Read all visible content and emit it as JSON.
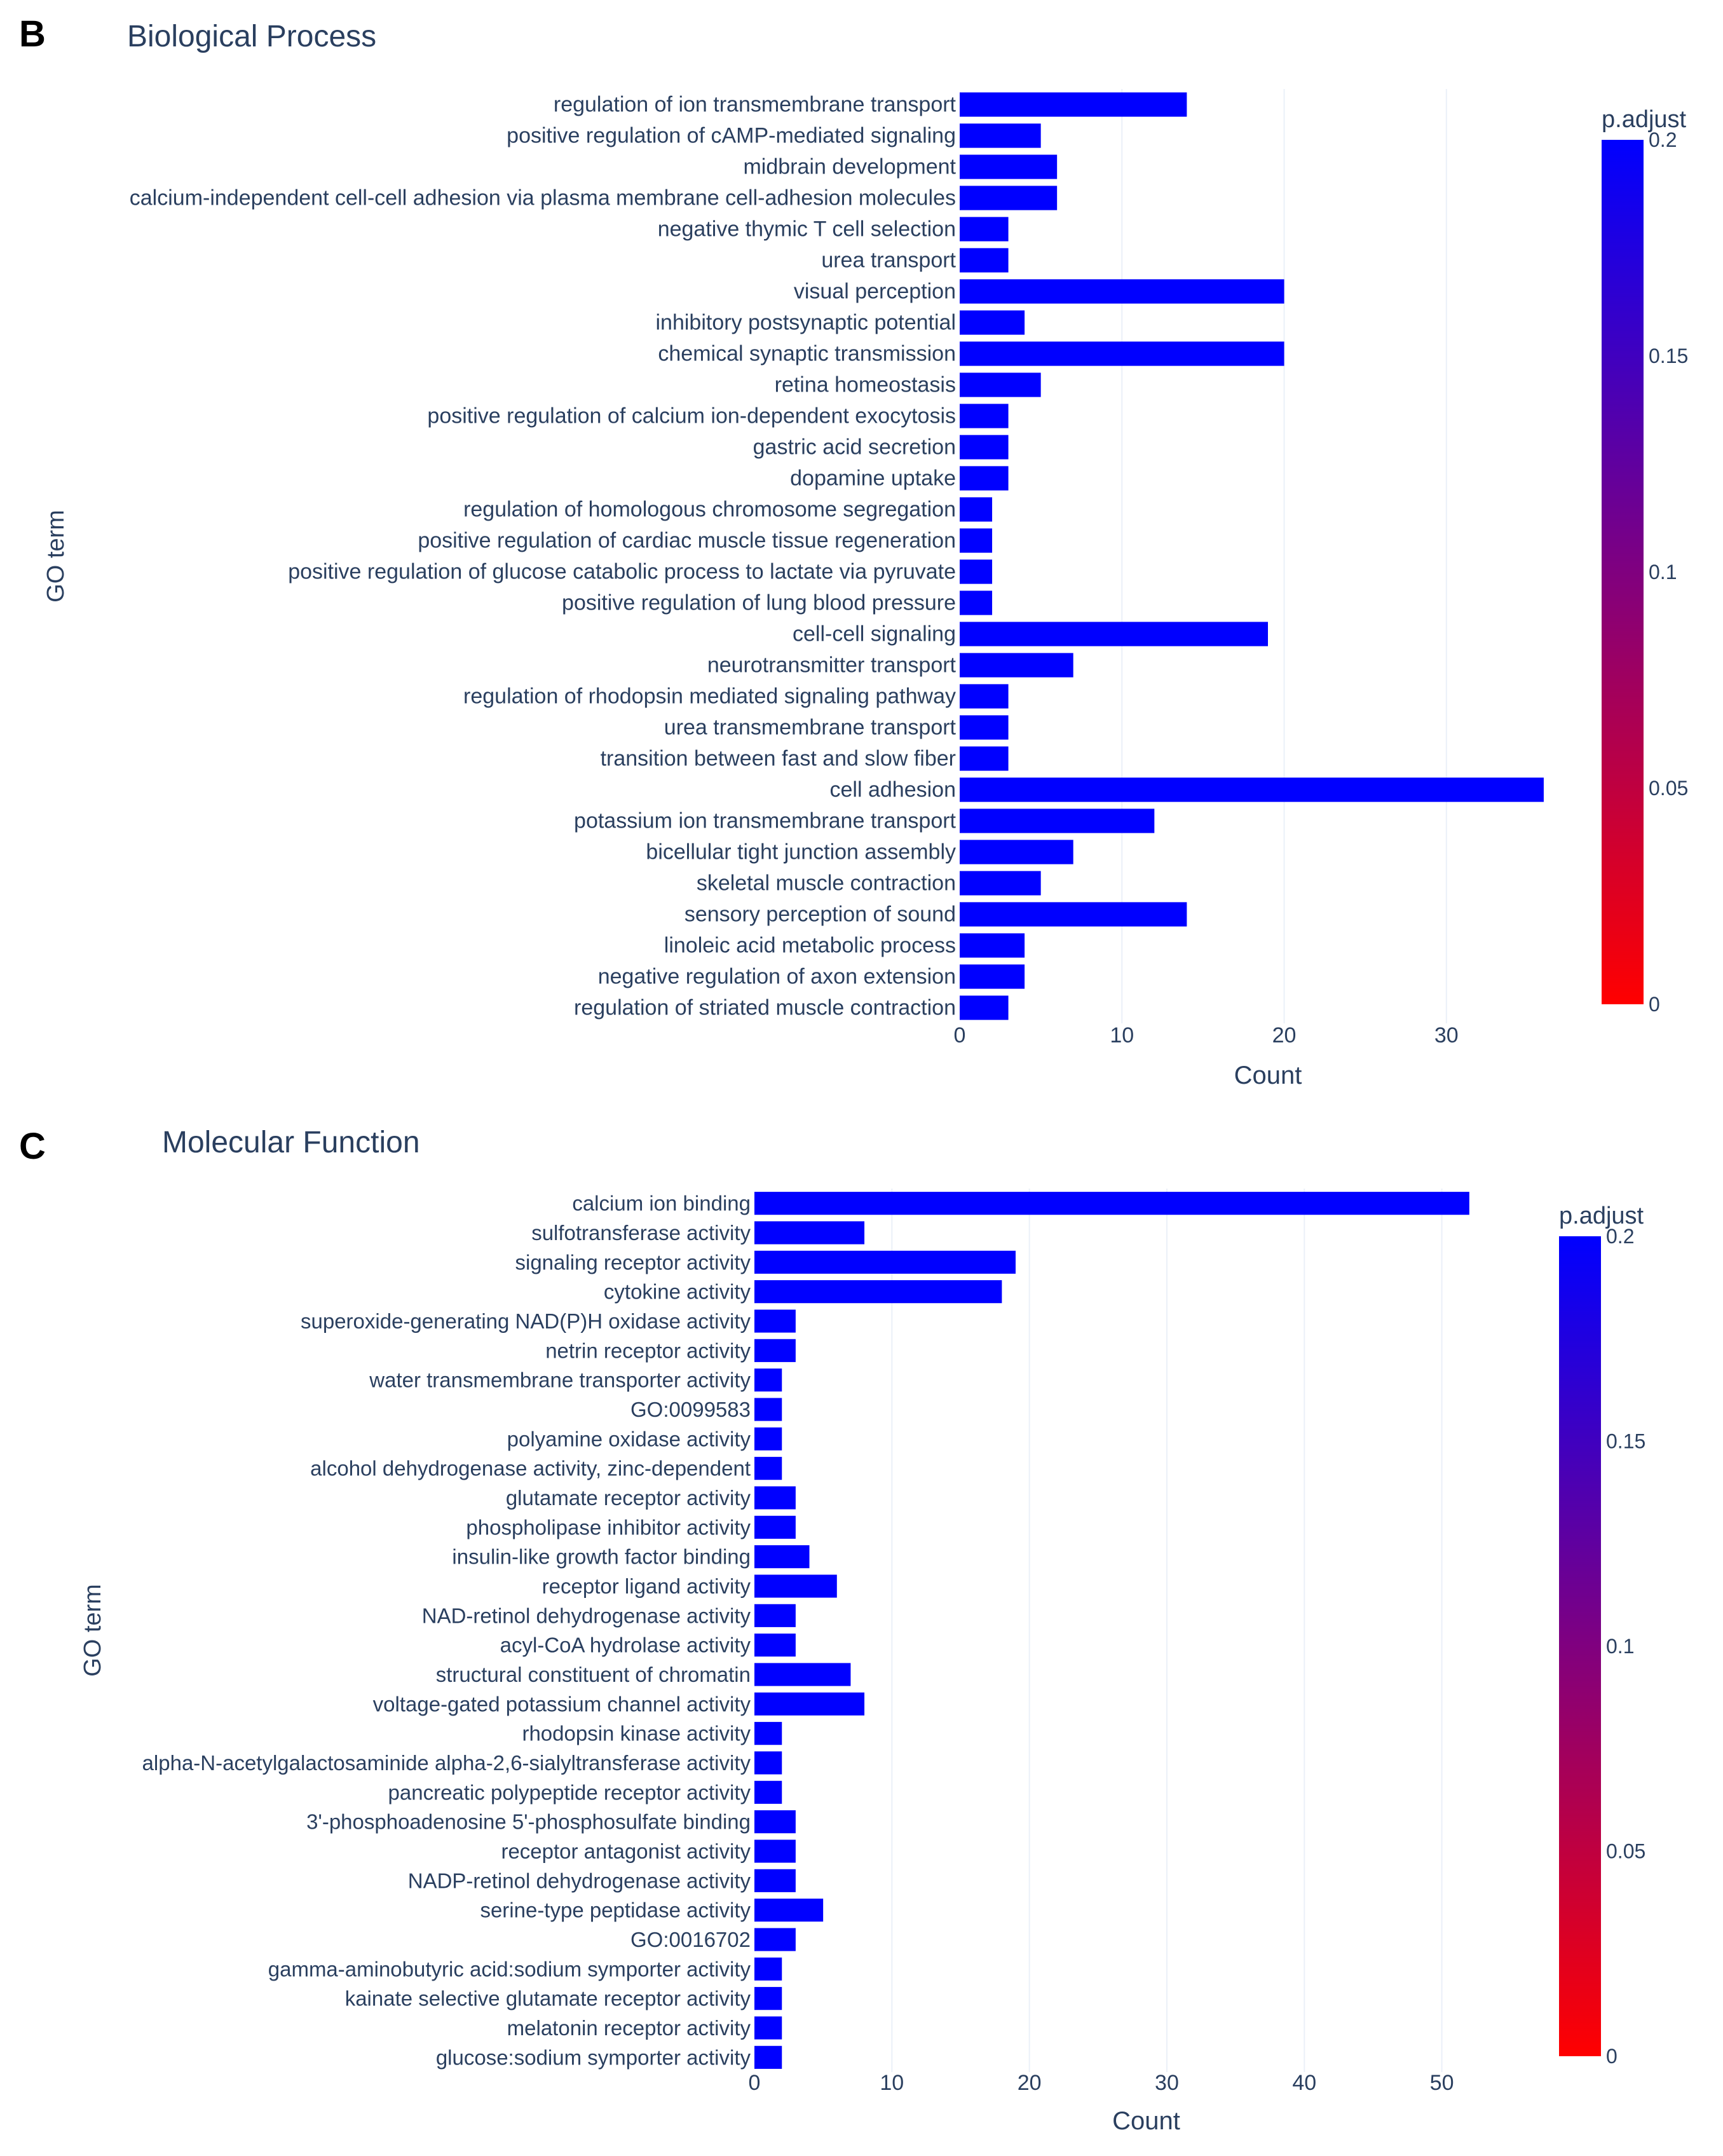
{
  "charts": [
    {
      "letter": "B",
      "title": "Biological Process",
      "chart_data": {
        "type": "bar",
        "orientation": "horizontal",
        "xlabel": "Count",
        "ylabel": "GO term",
        "xlim": [
          0,
          38
        ],
        "xticks": [
          0,
          10,
          20,
          30
        ],
        "grid": true,
        "categories": [
          "regulation of ion transmembrane transport",
          "positive regulation of cAMP-mediated signaling",
          "midbrain development",
          "calcium-independent cell-cell adhesion via plasma membrane cell-adhesion molecules",
          "negative thymic T cell selection",
          "urea transport",
          "visual perception",
          "inhibitory postsynaptic potential",
          "chemical synaptic transmission",
          "retina homeostasis",
          "positive regulation of calcium ion-dependent exocytosis",
          "gastric acid secretion",
          "dopamine uptake",
          "regulation of homologous chromosome segregation",
          "positive regulation of cardiac muscle tissue regeneration",
          "positive regulation of glucose catabolic process to lactate via pyruvate",
          "positive regulation of lung blood pressure",
          "cell-cell signaling",
          "neurotransmitter transport",
          "regulation of rhodopsin mediated signaling pathway",
          "urea transmembrane transport",
          "transition between fast and slow fiber",
          "cell adhesion",
          "potassium ion transmembrane transport",
          "bicellular tight junction assembly",
          "skeletal muscle contraction",
          "sensory perception of sound",
          "linoleic acid metabolic process",
          "negative regulation of axon extension",
          "regulation of striated muscle contraction"
        ],
        "values": [
          14,
          5,
          6,
          6,
          3,
          3,
          20,
          4,
          20,
          5,
          3,
          3,
          3,
          2,
          2,
          2,
          2,
          19,
          7,
          3,
          3,
          3,
          36,
          12,
          7,
          5,
          14,
          4,
          4,
          3
        ],
        "bar_color": "#0000ff",
        "colorbar": {
          "title": "p.adjust",
          "range": [
            0,
            0.2
          ],
          "ticks": [
            {
              "value": 0.2,
              "label": "0.2"
            },
            {
              "value": 0.15,
              "label": "0.15"
            },
            {
              "value": 0.1,
              "label": "0.1"
            },
            {
              "value": 0.05,
              "label": "0.05"
            },
            {
              "value": 0,
              "label": "0"
            }
          ],
          "color_low": "#ff0000",
          "color_high": "#0000ff"
        }
      }
    },
    {
      "letter": "C",
      "title": "Molecular Function",
      "chart_data": {
        "type": "bar",
        "orientation": "horizontal",
        "xlabel": "Count",
        "ylabel": "GO term",
        "xlim": [
          0,
          57
        ],
        "xticks": [
          0,
          10,
          20,
          30,
          40,
          50
        ],
        "grid": true,
        "categories": [
          "calcium ion binding",
          "sulfotransferase activity",
          "signaling receptor activity",
          "cytokine activity",
          "superoxide-generating NAD(P)H oxidase activity",
          "netrin receptor activity",
          "water transmembrane transporter activity",
          "GO:0099583",
          "polyamine oxidase activity",
          "alcohol dehydrogenase activity, zinc-dependent",
          "glutamate receptor activity",
          "phospholipase inhibitor activity",
          "insulin-like growth factor binding",
          "receptor ligand activity",
          "NAD-retinol dehydrogenase activity",
          "acyl-CoA hydrolase activity",
          "structural constituent of chromatin",
          "voltage-gated potassium channel activity",
          "rhodopsin kinase activity",
          "alpha-N-acetylgalactosaminide alpha-2,6-sialyltransferase activity",
          "pancreatic polypeptide receptor activity",
          "3'-phosphoadenosine 5'-phosphosulfate binding",
          "receptor antagonist activity",
          "NADP-retinol dehydrogenase activity",
          "serine-type peptidase activity",
          "GO:0016702",
          "gamma-aminobutyric acid:sodium symporter activity",
          "kainate selective glutamate receptor activity",
          "melatonin receptor activity",
          "glucose:sodium symporter activity"
        ],
        "values": [
          52,
          8,
          19,
          18,
          3,
          3,
          2,
          2,
          2,
          2,
          3,
          3,
          4,
          6,
          3,
          3,
          7,
          8,
          2,
          2,
          2,
          3,
          3,
          3,
          5,
          3,
          2,
          2,
          2,
          2
        ],
        "bar_color": "#0000ff",
        "colorbar": {
          "title": "p.adjust",
          "range": [
            0,
            0.2
          ],
          "ticks": [
            {
              "value": 0.2,
              "label": "0.2"
            },
            {
              "value": 0.15,
              "label": "0.15"
            },
            {
              "value": 0.1,
              "label": "0.1"
            },
            {
              "value": 0.05,
              "label": "0.05"
            },
            {
              "value": 0,
              "label": "0"
            }
          ],
          "color_low": "#ff0000",
          "color_high": "#0000ff"
        }
      }
    }
  ]
}
